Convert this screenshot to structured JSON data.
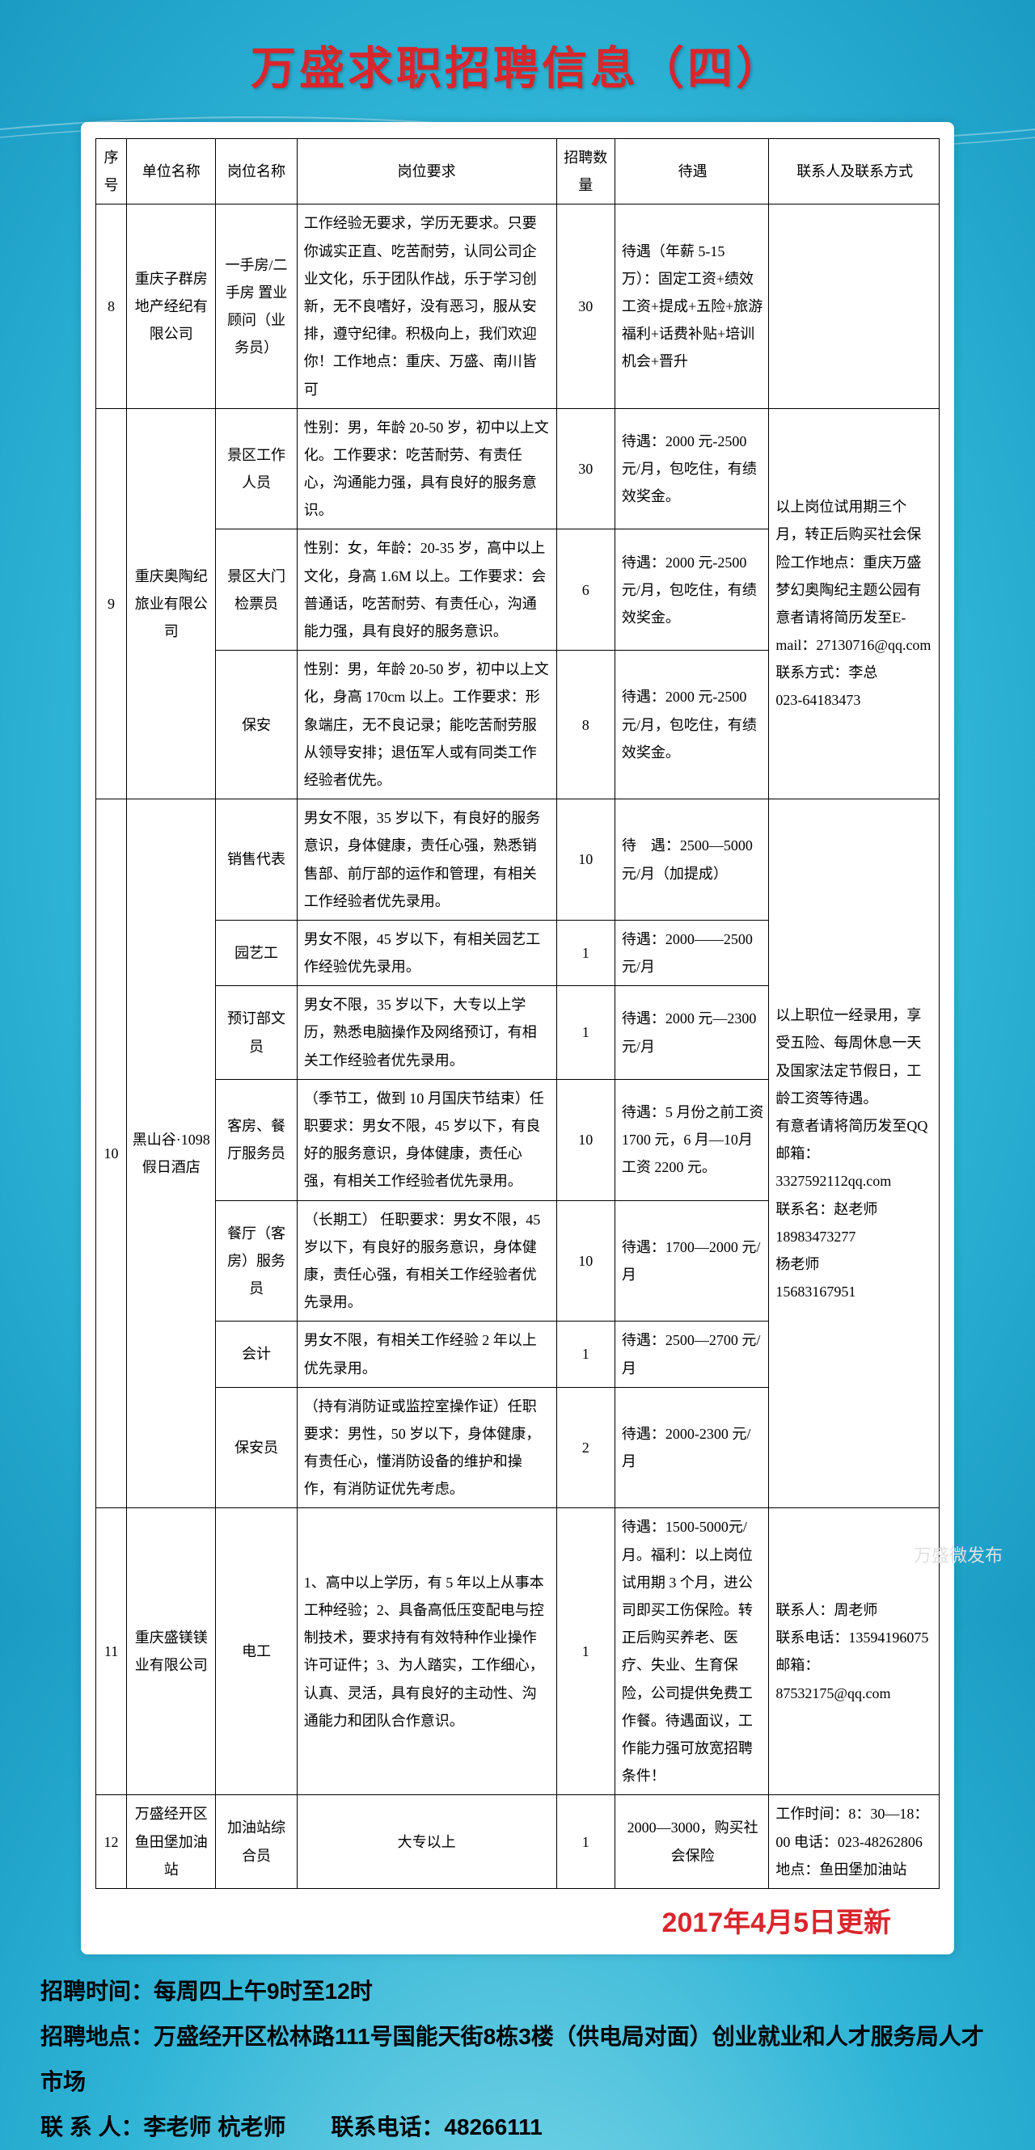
{
  "title": "万盛求职招聘信息（四）",
  "columns": [
    "序号",
    "单位名称",
    "岗位名称",
    "岗位要求",
    "招聘数量",
    "待遇",
    "联系人及联系方式"
  ],
  "groups": [
    {
      "idx": "8",
      "company": "重庆子群房地产经纪有限公司",
      "jobs": [
        {
          "job": "一手房/二手房 置业顾问（业务员）",
          "req": "工作经验无要求，学历无要求。只要你诚实正直、吃苦耐劳，认同公司企业文化，乐于团队作战，乐于学习创新，无不良嗜好，没有恶习，服从安排，遵守纪律。积极向上，我们欢迎你！工作地点：重庆、万盛、南川皆可",
          "count": "30",
          "pay": "待遇（年薪 5-15 万）：固定工资+绩效工资+提成+五险+旅游福利+话费补贴+培训机会+晋升"
        }
      ],
      "contact": ""
    },
    {
      "idx": "9",
      "company": "重庆奥陶纪旅业有限公司",
      "jobs": [
        {
          "job": "景区工作人员",
          "req": "性别：男，年龄 20-50 岁，初中以上文化。工作要求：吃苦耐劳、有责任心，沟通能力强，具有良好的服务意识。",
          "count": "30",
          "pay": "待遇：2000 元-2500 元/月，包吃住，有绩效奖金。"
        },
        {
          "job": "景区大门检票员",
          "req": "性别：女，年龄：20-35 岁，高中以上文化，身高 1.6M 以上。工作要求：会普通话，吃苦耐劳、有责任心，沟通能力强，具有良好的服务意识。",
          "count": "6",
          "pay": "待遇：2000 元-2500 元/月，包吃住，有绩效奖金。"
        },
        {
          "job": "保安",
          "req": "性别：男，年龄 20-50 岁，初中以上文化，身高 170cm 以上。工作要求：形象端庄，无不良记录；能吃苦耐劳服从领导安排；退伍军人或有同类工作经验者优先。",
          "count": "8",
          "pay": "待遇：2000 元-2500 元/月，包吃住，有绩效奖金。"
        }
      ],
      "contact": "以上岗位试用期三个月，转正后购买社会保险工作地点：重庆万盛梦幻奥陶纪主题公园有意者请将简历发至E-mail：27130716@qq.com\n联系方式：李总\n023-64183473"
    },
    {
      "idx": "10",
      "company": "黑山谷·1098 假日酒店",
      "jobs": [
        {
          "job": "销售代表",
          "req": "男女不限，35 岁以下，有良好的服务意识，身体健康，责任心强，熟悉销售部、前厅部的运作和管理，有相关工作经验者优先录用。",
          "count": "10",
          "pay": "待　遇：2500—5000元/月（加提成）"
        },
        {
          "job": "园艺工",
          "req": "男女不限，45 岁以下，有相关园艺工作经验优先录用。",
          "count": "1",
          "pay": "待遇：2000——2500元/月"
        },
        {
          "job": "预订部文员",
          "req": "男女不限，35 岁以下，大专以上学历，熟悉电脑操作及网络预订，有相关工作经验者优先录用。",
          "count": "1",
          "pay": "待遇：2000 元—2300元/月"
        },
        {
          "job": "客房、餐厅服务员",
          "req": "（季节工，做到 10 月国庆节结束）任职要求：男女不限，45 岁以下，有良好的服务意识，身体健康，责任心强，有相关工作经验者优先录用。",
          "count": "10",
          "pay": "待遇：5 月份之前工资 1700 元，6 月—10月工资 2200 元。"
        },
        {
          "job": "餐厅（客房）服务员",
          "req": "（长期工）\n任职要求：男女不限，45 岁以下，有良好的服务意识，身体健康，责任心强，有相关工作经验者优先录用。",
          "count": "10",
          "pay": "待遇：1700—2000 元/月"
        },
        {
          "job": "会计",
          "req": "男女不限，有相关工作经验 2 年以上优先录用。",
          "count": "1",
          "pay": "待遇：2500—2700 元/月"
        },
        {
          "job": "保安员",
          "req": "（持有消防证或监控室操作证）任职要求：男性，50 岁以下，身体健康，有责任心，懂消防设备的维护和操作，有消防证优先考虑。",
          "count": "2",
          "pay": "待遇：2000-2300 元/月"
        }
      ],
      "contact": "以上职位一经录用，享受五险、每周休息一天及国家法定节假日，工龄工资等待遇。\n有意者请将简历发至QQ 邮箱：3327592112qq.com\n联系名：赵老师\n18983473277\n杨老师\n15683167951"
    },
    {
      "idx": "11",
      "company": "重庆盛镁镁业有限公司",
      "jobs": [
        {
          "job": "电工",
          "req": "1、高中以上学历，有 5 年以上从事本工种经验；2、具备高低压变配电与控制技术，要求持有有效特种作业操作许可证件；3、为人踏实，工作细心，认真、灵活，具有良好的主动性、沟通能力和团队合作意识。",
          "count": "1",
          "pay": "待遇：1500-5000元/月。福利：以上岗位试用期 3 个月，进公司即买工伤保险。转正后购买养老、医疗、失业、生育保险，公司提供免费工作餐。待遇面议，工作能力强可放宽招聘条件！"
        }
      ],
      "contact": "联系人：周老师\n联系电话：13594196075\n邮箱：87532175@qq.com"
    },
    {
      "idx": "12",
      "company": "万盛经开区鱼田堡加油站",
      "jobs": [
        {
          "job": "加油站综合员",
          "req": "大专以上",
          "count": "1",
          "pay": "2000—3000，购买社会保险"
        }
      ],
      "contact": "工作时间：8：30—18：00 电话：023-48262806\n地点：鱼田堡加油站"
    }
  ],
  "update": "2017年4月5日更新",
  "footer": {
    "l1": "招聘时间：每周四上午9时至12时",
    "l2": "招聘地点：万盛经开区松林路111号国能天街8栋3楼（供电局对面）创业就业和人才服务局人才市场",
    "l3": "联 系 人：李老师  杭老师　　联系电话：48266111"
  },
  "watermark": "万盛微发布"
}
